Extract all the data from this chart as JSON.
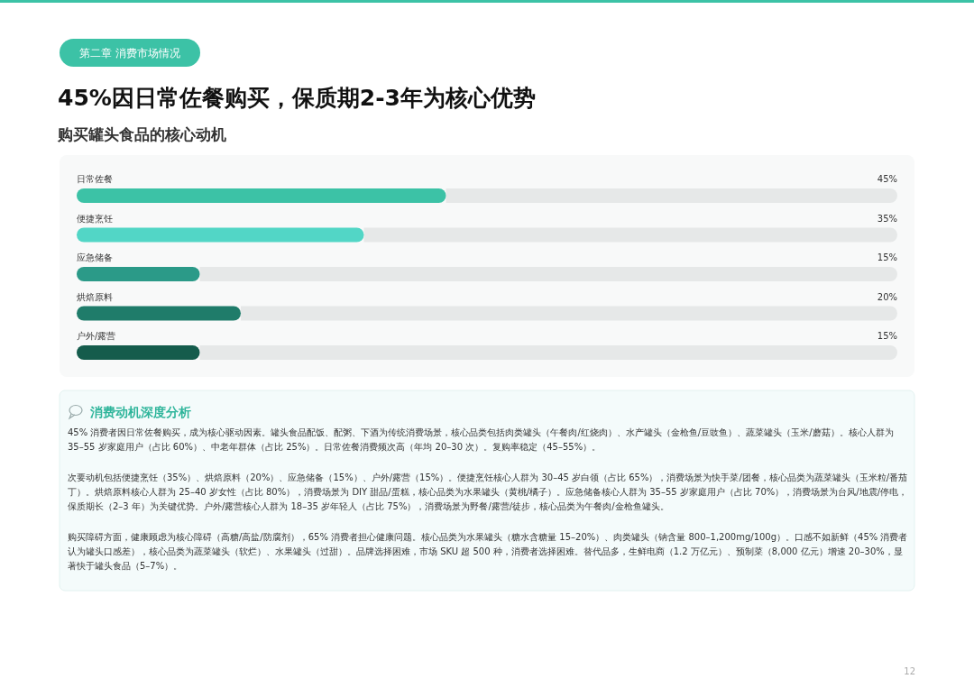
{
  "chart_data": {
    "type": "bar",
    "orientation": "horizontal",
    "title": "45%因日常佐餐购买，保质期2-3年为核心优势",
    "subtitle": "购买罐头食品的核心动机",
    "categories": [
      "日常佐餐",
      "便捷烹饪",
      "应急储备",
      "烘焙原料",
      "户外/露营"
    ],
    "values": [
      45,
      35,
      15,
      20,
      15
    ],
    "colors": [
      "#3cc2a6",
      "#52d6c6",
      "#2b9a88",
      "#1f7c6a",
      "#155c4c"
    ],
    "value_labels": [
      "45%",
      "35%",
      "15%",
      "20%",
      "15%"
    ],
    "xlim": [
      0,
      100
    ],
    "annotations": [
      "第二章 消费市场情况",
      "消费动机深度分析",
      "45% 消费者因日常佐餐购买，成为核心驱动因素。罐头食品配饭、配粥、下酒为传统消费场景，核心品类包括肉类罐头（午餐肉/红烧肉）、水产罐头（金枪鱼/豆豉鱼）、蔬菜罐头（玉米/蘑菇）。核心人群为 35–55 岁家庭用户（占比 60%）、中老年群体（占比 25%）。日常佐餐消费频次高（年均 20–30 次）。复购率稳定（45–55%）。",
      "次要动机包括便捷烹饪（35%）、烘焙原料（20%）、应急储备（15%）、户外/露营（15%）。便捷烹饪核心人群为 30–45 岁白领（占比 65%），消费场景为快手菜/团餐，核心品类为蔬菜罐头（玉米粒/番茄丁）。烘焙原料核心人群为 25–40 岁女性（占比 80%），消费场景为 DIY 甜品/蛋糕，核心品类为水果罐头（黄桃/橘子）。应急储备核心人群为 35–55 岁家庭用户（占比 70%），消费场景为台风/地震/停电，保质期长（2–3 年）为关键优势。户外/露营核心人群为 18–35 岁年轻人（占比 75%），消费场景为野餐/露营/徒步，核心品类为午餐肉/金枪鱼罐头。",
      "购买障碍方面，健康顾虑为核心障碍（高糖/高盐/防腐剂），65% 消费者担心健康问题。核心品类为水果罐头（糖水含糖量 15–20%）、肉类罐头（钠含量 800–1,200mg/100g）。口感不如新鲜（45% 消费者认为罐头口感差），核心品类为蔬菜罐头（软烂）、水果罐头（过甜）。品牌选择困难，市场 SKU 超 500 种，消费者选择困难。替代品多，生鲜电商（1.2 万亿元）、预制菜（8,000 亿元）增速 20–30%，显著快于罐头食品（5–7%）。",
      "12"
    ]
  }
}
